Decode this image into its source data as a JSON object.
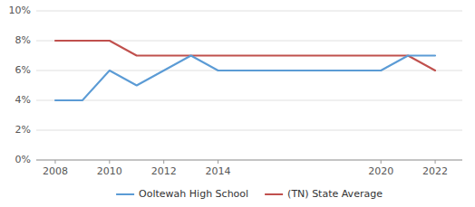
{
  "chart_data": {
    "type": "line",
    "x": [
      2008,
      2009,
      2010,
      2011,
      2012,
      2013,
      2014,
      2020,
      2021,
      2022
    ],
    "series": [
      {
        "name": "Ooltewah High School",
        "color": "#5b9bd5",
        "values": [
          4,
          4,
          6,
          5,
          6,
          7,
          6,
          6,
          7,
          7
        ]
      },
      {
        "name": "(TN) State Average",
        "color": "#c0504d",
        "values": [
          8,
          8,
          8,
          7,
          7,
          7,
          7,
          7,
          7,
          6
        ]
      }
    ],
    "xlim": [
      2007.3,
      2023.0
    ],
    "ylim": [
      0,
      10
    ],
    "xticks": [
      2008,
      2010,
      2012,
      2014,
      2020,
      2022
    ],
    "yticks": [
      {
        "value": 0,
        "label": "0%"
      },
      {
        "value": 2,
        "label": "2%"
      },
      {
        "value": 4,
        "label": "4%"
      },
      {
        "value": 6,
        "label": "6%"
      },
      {
        "value": 8,
        "label": "8%"
      },
      {
        "value": 10,
        "label": "10%"
      }
    ],
    "grid": true,
    "legend": "bottom"
  }
}
